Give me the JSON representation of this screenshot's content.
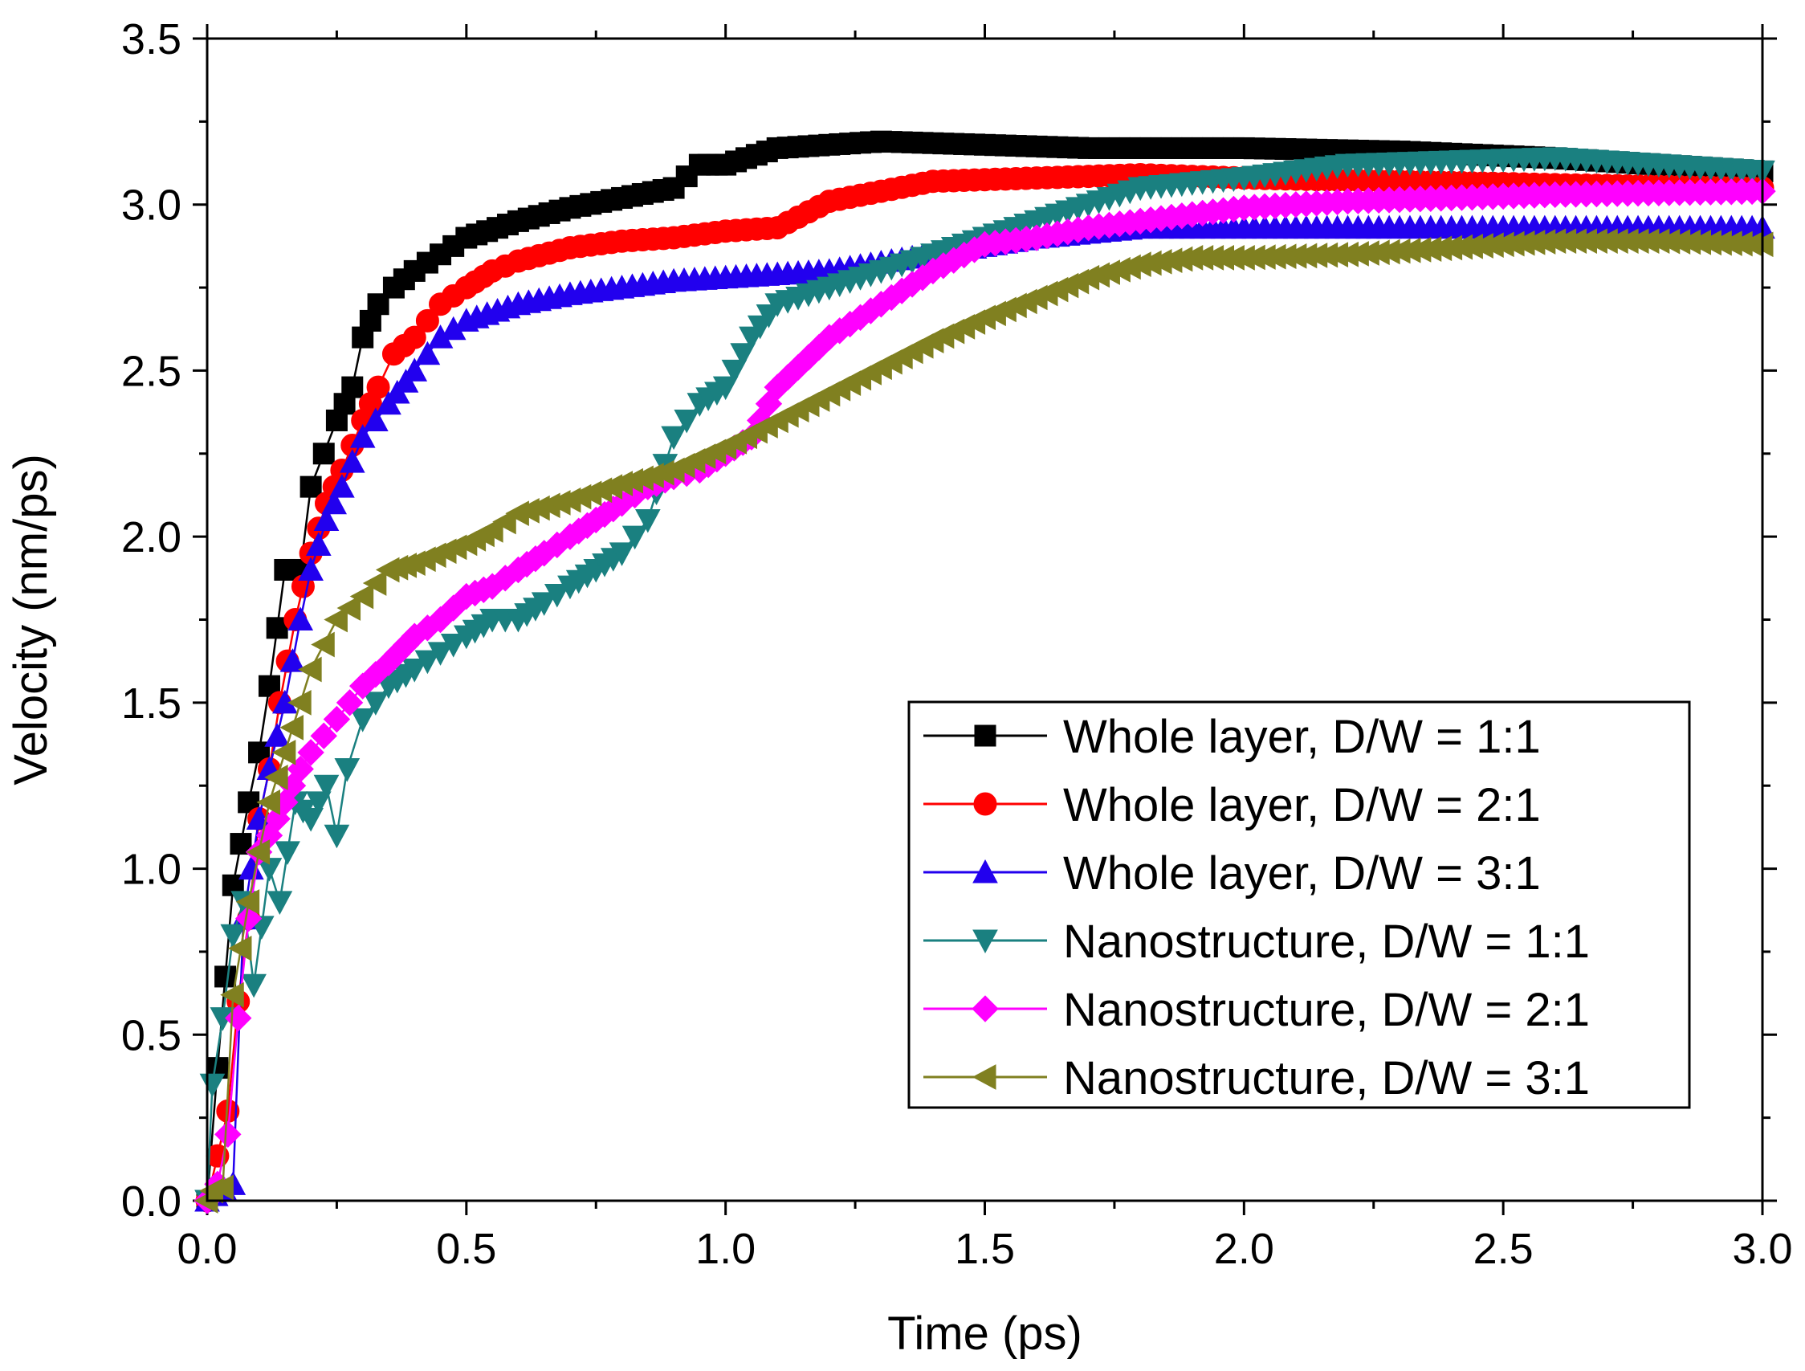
{
  "chart_data": {
    "type": "line",
    "title": "",
    "xlabel": "Time (ps)",
    "ylabel": "Velocity (nm/ps)",
    "xlim": [
      0,
      3.0
    ],
    "ylim": [
      0,
      3.5
    ],
    "xticks": [
      "0.0",
      "0.5",
      "1.0",
      "1.5",
      "2.0",
      "2.5",
      "3.0"
    ],
    "yticks": [
      "0.0",
      "0.5",
      "1.0",
      "1.5",
      "2.0",
      "2.5",
      "3.0",
      "3.5"
    ],
    "legend_position": "lower-right",
    "series": [
      {
        "name": "Whole layer, D/W = 1:1",
        "color": "#000000",
        "marker": "square",
        "points": [
          [
            0.0,
            0.0
          ],
          [
            0.02,
            0.4
          ],
          [
            0.05,
            0.95
          ],
          [
            0.08,
            1.2
          ],
          [
            0.1,
            1.35
          ],
          [
            0.12,
            1.55
          ],
          [
            0.15,
            1.9
          ],
          [
            0.18,
            1.9
          ],
          [
            0.2,
            2.15
          ],
          [
            0.25,
            2.35
          ],
          [
            0.28,
            2.45
          ],
          [
            0.3,
            2.6
          ],
          [
            0.33,
            2.7
          ],
          [
            0.36,
            2.75
          ],
          [
            0.4,
            2.8
          ],
          [
            0.45,
            2.85
          ],
          [
            0.5,
            2.9
          ],
          [
            0.6,
            2.95
          ],
          [
            0.7,
            2.99
          ],
          [
            0.8,
            3.02
          ],
          [
            0.9,
            3.05
          ],
          [
            0.95,
            3.12
          ],
          [
            1.0,
            3.12
          ],
          [
            1.1,
            3.17
          ],
          [
            1.2,
            3.18
          ],
          [
            1.3,
            3.19
          ],
          [
            1.5,
            3.18
          ],
          [
            1.7,
            3.17
          ],
          [
            2.0,
            3.17
          ],
          [
            2.3,
            3.16
          ],
          [
            2.6,
            3.14
          ],
          [
            3.0,
            3.1
          ]
        ]
      },
      {
        "name": "Whole layer, D/W = 2:1",
        "color": "#ff0000",
        "marker": "circle",
        "points": [
          [
            0.0,
            0.0
          ],
          [
            0.04,
            0.27
          ],
          [
            0.06,
            0.6
          ],
          [
            0.08,
            0.85
          ],
          [
            0.1,
            1.15
          ],
          [
            0.12,
            1.3
          ],
          [
            0.14,
            1.5
          ],
          [
            0.17,
            1.75
          ],
          [
            0.2,
            1.95
          ],
          [
            0.23,
            2.1
          ],
          [
            0.26,
            2.2
          ],
          [
            0.3,
            2.35
          ],
          [
            0.33,
            2.45
          ],
          [
            0.36,
            2.55
          ],
          [
            0.4,
            2.6
          ],
          [
            0.45,
            2.7
          ],
          [
            0.5,
            2.75
          ],
          [
            0.55,
            2.8
          ],
          [
            0.6,
            2.83
          ],
          [
            0.7,
            2.87
          ],
          [
            0.8,
            2.89
          ],
          [
            0.9,
            2.9
          ],
          [
            1.0,
            2.92
          ],
          [
            1.1,
            2.93
          ],
          [
            1.2,
            3.01
          ],
          [
            1.3,
            3.04
          ],
          [
            1.4,
            3.07
          ],
          [
            1.6,
            3.08
          ],
          [
            1.8,
            3.09
          ],
          [
            2.0,
            3.08
          ],
          [
            2.3,
            3.07
          ],
          [
            2.6,
            3.06
          ],
          [
            3.0,
            3.05
          ]
        ]
      },
      {
        "name": "Whole layer, D/W = 3:1",
        "color": "#2200ee",
        "marker": "triangle-up",
        "points": [
          [
            0.0,
            0.0
          ],
          [
            0.05,
            0.05
          ],
          [
            0.07,
            0.85
          ],
          [
            0.1,
            1.15
          ],
          [
            0.12,
            1.3
          ],
          [
            0.15,
            1.5
          ],
          [
            0.18,
            1.75
          ],
          [
            0.2,
            1.9
          ],
          [
            0.23,
            2.05
          ],
          [
            0.26,
            2.15
          ],
          [
            0.3,
            2.3
          ],
          [
            0.35,
            2.4
          ],
          [
            0.4,
            2.5
          ],
          [
            0.45,
            2.6
          ],
          [
            0.5,
            2.65
          ],
          [
            0.6,
            2.7
          ],
          [
            0.7,
            2.73
          ],
          [
            0.8,
            2.75
          ],
          [
            0.9,
            2.77
          ],
          [
            1.0,
            2.78
          ],
          [
            1.2,
            2.8
          ],
          [
            1.4,
            2.85
          ],
          [
            1.6,
            2.9
          ],
          [
            1.8,
            2.93
          ],
          [
            2.0,
            2.93
          ],
          [
            2.5,
            2.93
          ],
          [
            3.0,
            2.93
          ]
        ]
      },
      {
        "name": "Nanostructure, D/W = 1:1",
        "color": "#1a8080",
        "marker": "triangle-down",
        "points": [
          [
            0.0,
            0.0
          ],
          [
            0.01,
            0.35
          ],
          [
            0.03,
            0.55
          ],
          [
            0.05,
            0.8
          ],
          [
            0.07,
            0.9
          ],
          [
            0.09,
            0.65
          ],
          [
            0.12,
            1.0
          ],
          [
            0.14,
            0.9
          ],
          [
            0.17,
            1.2
          ],
          [
            0.2,
            1.15
          ],
          [
            0.23,
            1.25
          ],
          [
            0.25,
            1.1
          ],
          [
            0.27,
            1.3
          ],
          [
            0.3,
            1.45
          ],
          [
            0.35,
            1.55
          ],
          [
            0.4,
            1.6
          ],
          [
            0.45,
            1.65
          ],
          [
            0.5,
            1.7
          ],
          [
            0.55,
            1.75
          ],
          [
            0.6,
            1.75
          ],
          [
            0.65,
            1.8
          ],
          [
            0.7,
            1.85
          ],
          [
            0.75,
            1.9
          ],
          [
            0.8,
            1.95
          ],
          [
            0.85,
            2.05
          ],
          [
            0.9,
            2.3
          ],
          [
            0.95,
            2.4
          ],
          [
            1.0,
            2.45
          ],
          [
            1.05,
            2.6
          ],
          [
            1.1,
            2.7
          ],
          [
            1.2,
            2.75
          ],
          [
            1.3,
            2.8
          ],
          [
            1.4,
            2.85
          ],
          [
            1.5,
            2.9
          ],
          [
            1.6,
            2.95
          ],
          [
            1.7,
            3.0
          ],
          [
            1.8,
            3.05
          ],
          [
            2.0,
            3.08
          ],
          [
            2.2,
            3.12
          ],
          [
            2.4,
            3.13
          ],
          [
            2.6,
            3.14
          ],
          [
            2.8,
            3.12
          ],
          [
            3.0,
            3.1
          ]
        ]
      },
      {
        "name": "Nanostructure, D/W = 2:1",
        "color": "#ff00ff",
        "marker": "diamond",
        "points": [
          [
            0.0,
            0.0
          ],
          [
            0.02,
            0.05
          ],
          [
            0.04,
            0.2
          ],
          [
            0.06,
            0.55
          ],
          [
            0.08,
            0.85
          ],
          [
            0.1,
            1.05
          ],
          [
            0.12,
            1.1
          ],
          [
            0.15,
            1.2
          ],
          [
            0.18,
            1.3
          ],
          [
            0.2,
            1.35
          ],
          [
            0.25,
            1.45
          ],
          [
            0.3,
            1.55
          ],
          [
            0.35,
            1.62
          ],
          [
            0.4,
            1.7
          ],
          [
            0.45,
            1.75
          ],
          [
            0.5,
            1.82
          ],
          [
            0.55,
            1.85
          ],
          [
            0.6,
            1.9
          ],
          [
            0.65,
            1.95
          ],
          [
            0.7,
            2.0
          ],
          [
            0.75,
            2.05
          ],
          [
            0.8,
            2.1
          ],
          [
            0.85,
            2.15
          ],
          [
            0.9,
            2.18
          ],
          [
            0.95,
            2.2
          ],
          [
            1.0,
            2.25
          ],
          [
            1.05,
            2.3
          ],
          [
            1.1,
            2.45
          ],
          [
            1.2,
            2.6
          ],
          [
            1.3,
            2.7
          ],
          [
            1.4,
            2.8
          ],
          [
            1.5,
            2.88
          ],
          [
            1.6,
            2.9
          ],
          [
            1.7,
            2.93
          ],
          [
            1.8,
            2.95
          ],
          [
            1.9,
            2.97
          ],
          [
            2.0,
            2.99
          ],
          [
            2.2,
            3.01
          ],
          [
            2.4,
            3.02
          ],
          [
            2.6,
            3.03
          ],
          [
            3.0,
            3.04
          ]
        ]
      },
      {
        "name": "Nanostructure, D/W = 3:1",
        "color": "#808020",
        "marker": "triangle-left",
        "points": [
          [
            0.0,
            0.0
          ],
          [
            0.01,
            0.03
          ],
          [
            0.03,
            0.04
          ],
          [
            0.05,
            0.62
          ],
          [
            0.08,
            0.9
          ],
          [
            0.1,
            1.05
          ],
          [
            0.12,
            1.2
          ],
          [
            0.15,
            1.35
          ],
          [
            0.18,
            1.5
          ],
          [
            0.2,
            1.6
          ],
          [
            0.25,
            1.75
          ],
          [
            0.3,
            1.82
          ],
          [
            0.35,
            1.9
          ],
          [
            0.4,
            1.92
          ],
          [
            0.5,
            1.98
          ],
          [
            0.55,
            2.02
          ],
          [
            0.6,
            2.07
          ],
          [
            0.7,
            2.11
          ],
          [
            0.8,
            2.16
          ],
          [
            0.9,
            2.2
          ],
          [
            1.0,
            2.27
          ],
          [
            1.1,
            2.35
          ],
          [
            1.2,
            2.43
          ],
          [
            1.3,
            2.51
          ],
          [
            1.4,
            2.59
          ],
          [
            1.5,
            2.66
          ],
          [
            1.6,
            2.72
          ],
          [
            1.7,
            2.78
          ],
          [
            1.8,
            2.82
          ],
          [
            1.9,
            2.84
          ],
          [
            2.0,
            2.84
          ],
          [
            2.2,
            2.85
          ],
          [
            2.4,
            2.87
          ],
          [
            2.6,
            2.89
          ],
          [
            2.8,
            2.89
          ],
          [
            3.0,
            2.88
          ]
        ]
      }
    ]
  }
}
